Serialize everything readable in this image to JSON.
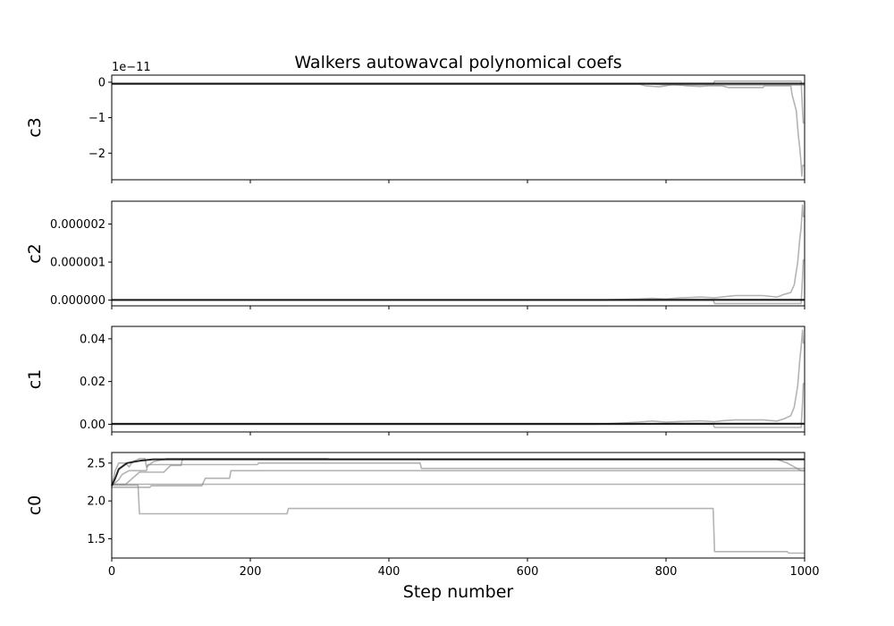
{
  "figure": {
    "title": "Walkers autowavcal polynomical coefs",
    "xlabel": "Step number"
  },
  "chart_data": [
    {
      "type": "line",
      "ylabel": "c3",
      "offset_text": "1e−11",
      "xlim": [
        0,
        1000
      ],
      "ylim": [
        -2.75,
        0.2
      ],
      "yticks": [
        {
          "value": 0,
          "label": "0"
        },
        {
          "value": -1,
          "label": "−1"
        },
        {
          "value": -2,
          "label": "−2"
        }
      ],
      "series": [
        {
          "style": "faint",
          "points": [
            [
              0,
              -0.05
            ],
            [
              760,
              -0.05
            ],
            [
              770,
              -0.1
            ],
            [
              790,
              -0.13
            ],
            [
              800,
              -0.1
            ],
            [
              810,
              -0.06
            ],
            [
              830,
              -0.1
            ],
            [
              850,
              -0.12
            ],
            [
              860,
              -0.1
            ],
            [
              870,
              -0.1
            ],
            [
              880,
              -0.1
            ],
            [
              890,
              -0.15
            ],
            [
              940,
              -0.15
            ],
            [
              942,
              -0.1
            ],
            [
              980,
              -0.1
            ],
            [
              982,
              -0.35
            ],
            [
              988,
              -0.8
            ],
            [
              991,
              -1.5
            ],
            [
              993,
              -1.85
            ],
            [
              995,
              -2.3
            ],
            [
              996,
              -2.65
            ],
            [
              997,
              -2.35
            ],
            [
              1000,
              -2.35
            ]
          ]
        },
        {
          "style": "faint",
          "points": [
            [
              0,
              -0.05
            ],
            [
              868,
              -0.05
            ],
            [
              870,
              0.03
            ],
            [
              995,
              0.03
            ],
            [
              997,
              -0.8
            ],
            [
              998,
              -1.15
            ],
            [
              1000,
              -1.15
            ]
          ]
        },
        {
          "style": "faint",
          "points": [
            [
              0,
              -0.05
            ],
            [
              780,
              -0.05
            ],
            [
              800,
              -0.08
            ],
            [
              860,
              -0.08
            ],
            [
              1000,
              -0.08
            ]
          ]
        },
        {
          "style": "main",
          "points": [
            [
              0,
              -0.04
            ],
            [
              1000,
              -0.04
            ]
          ]
        }
      ]
    },
    {
      "type": "line",
      "ylabel": "c2",
      "xlim": [
        0,
        1000
      ],
      "ylim": [
        -1.5e-07,
        2.6e-06
      ],
      "yticks": [
        {
          "value": 0,
          "label": "0.000000"
        },
        {
          "value": 1e-06,
          "label": "0.000001"
        },
        {
          "value": 2e-06,
          "label": "0.000002"
        }
      ],
      "series": [
        {
          "style": "faint",
          "points": [
            [
              0,
              2e-09
            ],
            [
              700,
              2e-09
            ],
            [
              720,
              1e-08
            ],
            [
              760,
              3e-08
            ],
            [
              780,
              5e-08
            ],
            [
              800,
              3e-08
            ],
            [
              820,
              6e-08
            ],
            [
              850,
              8e-08
            ],
            [
              870,
              6e-08
            ],
            [
              880,
              8e-08
            ],
            [
              900,
              1.2e-07
            ],
            [
              940,
              1.2e-07
            ],
            [
              960,
              8e-08
            ],
            [
              970,
              1.5e-07
            ],
            [
              980,
              2e-07
            ],
            [
              985,
              4e-07
            ],
            [
              990,
              1e-06
            ],
            [
              993,
              1.6e-06
            ],
            [
              995,
              1.9e-06
            ],
            [
              997,
              2.5e-06
            ],
            [
              998,
              2.2e-06
            ],
            [
              1000,
              2.2e-06
            ]
          ]
        },
        {
          "style": "faint",
          "points": [
            [
              0,
              2e-09
            ],
            [
              868,
              2e-09
            ],
            [
              870,
              -9e-08
            ],
            [
              995,
              -9e-08
            ],
            [
              997,
              6e-07
            ],
            [
              998,
              1.05e-06
            ],
            [
              1000,
              1.05e-06
            ]
          ]
        },
        {
          "style": "faint",
          "points": [
            [
              0,
              2e-09
            ],
            [
              750,
              2e-09
            ],
            [
              800,
              2e-08
            ],
            [
              1000,
              2e-08
            ]
          ]
        },
        {
          "style": "main",
          "points": [
            [
              0,
              4e-09
            ],
            [
              1000,
              4e-09
            ]
          ]
        }
      ]
    },
    {
      "type": "line",
      "ylabel": "c1",
      "xlim": [
        0,
        1000
      ],
      "ylim": [
        -0.0036,
        0.0458
      ],
      "yticks": [
        {
          "value": 0,
          "label": "0.00"
        },
        {
          "value": 0.02,
          "label": "0.02"
        },
        {
          "value": 0.04,
          "label": "0.04"
        }
      ],
      "series": [
        {
          "style": "faint",
          "points": [
            [
              0,
              0.0
            ],
            [
              700,
              0.0
            ],
            [
              720,
              0.0003
            ],
            [
              760,
              0.001
            ],
            [
              780,
              0.0015
            ],
            [
              800,
              0.001
            ],
            [
              820,
              0.0013
            ],
            [
              850,
              0.0016
            ],
            [
              870,
              0.0012
            ],
            [
              880,
              0.0016
            ],
            [
              900,
              0.002
            ],
            [
              940,
              0.002
            ],
            [
              960,
              0.0015
            ],
            [
              970,
              0.0025
            ],
            [
              980,
              0.004
            ],
            [
              985,
              0.008
            ],
            [
              990,
              0.018
            ],
            [
              993,
              0.03
            ],
            [
              995,
              0.036
            ],
            [
              997,
              0.044
            ],
            [
              998,
              0.038
            ],
            [
              1000,
              0.038
            ]
          ]
        },
        {
          "style": "faint",
          "points": [
            [
              0,
              0.0
            ],
            [
              868,
              0.0
            ],
            [
              870,
              -0.0015
            ],
            [
              995,
              -0.0015
            ],
            [
              997,
              0.01
            ],
            [
              998,
              0.019
            ],
            [
              1000,
              0.019
            ]
          ]
        },
        {
          "style": "faint",
          "points": [
            [
              0,
              0.0
            ],
            [
              750,
              0.0
            ],
            [
              800,
              0.0004
            ],
            [
              1000,
              0.0004
            ]
          ]
        },
        {
          "style": "main",
          "points": [
            [
              0,
              0.0002
            ],
            [
              1000,
              0.0002
            ]
          ]
        }
      ]
    },
    {
      "type": "line",
      "ylabel": "c0",
      "xlim": [
        0,
        1000
      ],
      "ylim": [
        1.245,
        2.64
      ],
      "yticks": [
        {
          "value": 1.5,
          "label": "1.5"
        },
        {
          "value": 2.0,
          "label": "2.0"
        },
        {
          "value": 2.5,
          "label": "2.5"
        }
      ],
      "xticks": [
        {
          "value": 0,
          "label": "0"
        },
        {
          "value": 200,
          "label": "200"
        },
        {
          "value": 400,
          "label": "400"
        },
        {
          "value": 600,
          "label": "600"
        },
        {
          "value": 800,
          "label": "800"
        },
        {
          "value": 1000,
          "label": "1000"
        }
      ],
      "series": [
        {
          "style": "faint",
          "points": [
            [
              0,
              2.21
            ],
            [
              38,
              2.21
            ],
            [
              40,
              1.83
            ],
            [
              253,
              1.83
            ],
            [
              255,
              1.9
            ],
            [
              868,
              1.9
            ],
            [
              870,
              1.33
            ],
            [
              975,
              1.33
            ],
            [
              977,
              1.31
            ],
            [
              1000,
              1.31
            ]
          ]
        },
        {
          "style": "faint",
          "points": [
            [
              0,
              2.22
            ],
            [
              1000,
              2.22
            ]
          ]
        },
        {
          "style": "faint",
          "points": [
            [
              0,
              2.2
            ],
            [
              10,
              2.28
            ],
            [
              15,
              2.35
            ],
            [
              25,
              2.4
            ],
            [
              50,
              2.4
            ],
            [
              52,
              2.48
            ],
            [
              210,
              2.48
            ],
            [
              212,
              2.5
            ],
            [
              445,
              2.5
            ],
            [
              447,
              2.43
            ],
            [
              1000,
              2.43
            ]
          ]
        },
        {
          "style": "faint",
          "points": [
            [
              0,
              2.22
            ],
            [
              20,
              2.22
            ],
            [
              40,
              2.38
            ],
            [
              75,
              2.38
            ],
            [
              85,
              2.47
            ],
            [
              100,
              2.47
            ],
            [
              102,
              2.55
            ],
            [
              960,
              2.55
            ],
            [
              975,
              2.5
            ],
            [
              985,
              2.45
            ],
            [
              995,
              2.4
            ],
            [
              1000,
              2.4
            ]
          ]
        },
        {
          "style": "faint",
          "points": [
            [
              0,
              2.18
            ],
            [
              55,
              2.18
            ],
            [
              57,
              2.2
            ],
            [
              130,
              2.2
            ],
            [
              135,
              2.3
            ],
            [
              170,
              2.3
            ],
            [
              172,
              2.4
            ],
            [
              1000,
              2.4
            ]
          ]
        },
        {
          "style": "faint",
          "points": [
            [
              0,
              2.2
            ],
            [
              5,
              2.4
            ],
            [
              10,
              2.5
            ],
            [
              20,
              2.5
            ],
            [
              25,
              2.45
            ],
            [
              30,
              2.52
            ],
            [
              40,
              2.56
            ],
            [
              48,
              2.56
            ],
            [
              50,
              2.45
            ],
            [
              60,
              2.52
            ],
            [
              80,
              2.56
            ],
            [
              312,
              2.56
            ],
            [
              314,
              2.55
            ],
            [
              1000,
              2.55
            ]
          ]
        },
        {
          "style": "main",
          "points": [
            [
              0,
              2.2
            ],
            [
              5,
              2.3
            ],
            [
              10,
              2.42
            ],
            [
              22,
              2.5
            ],
            [
              40,
              2.53
            ],
            [
              60,
              2.55
            ],
            [
              100,
              2.55
            ],
            [
              1000,
              2.55
            ]
          ]
        }
      ]
    }
  ]
}
